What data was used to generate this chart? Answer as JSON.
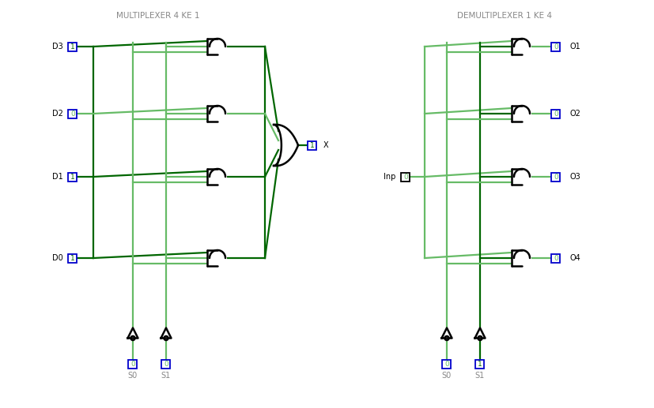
{
  "bg_color": "#ffffff",
  "wire_dark": "#006600",
  "wire_light": "#66bb66",
  "black": "#000000",
  "blue": "#0000cc",
  "gray": "#888888",
  "title_mux": "MULTIPLEXER 4 KE 1",
  "title_demux": "DEMULTIPLEXER 1 KE 4",
  "mux_inp_labels": [
    "D3",
    "D2",
    "D1",
    "D0"
  ],
  "mux_inp_vals": [
    "1",
    "0",
    "1",
    "1"
  ],
  "mux_sel_labels": [
    "S0",
    "S1"
  ],
  "mux_sel_vals": [
    "0",
    "0"
  ],
  "mux_out_val": "1",
  "mux_out_label": "X",
  "demux_inp_label": "Inp",
  "demux_inp_val": "0",
  "demux_out_labels": [
    "O1",
    "O2",
    "O3",
    "O4"
  ],
  "demux_out_vals": [
    "0",
    "0",
    "0",
    "0"
  ],
  "demux_sel_labels": [
    "S0",
    "S1"
  ],
  "demux_sel_vals": [
    "0",
    "1"
  ]
}
